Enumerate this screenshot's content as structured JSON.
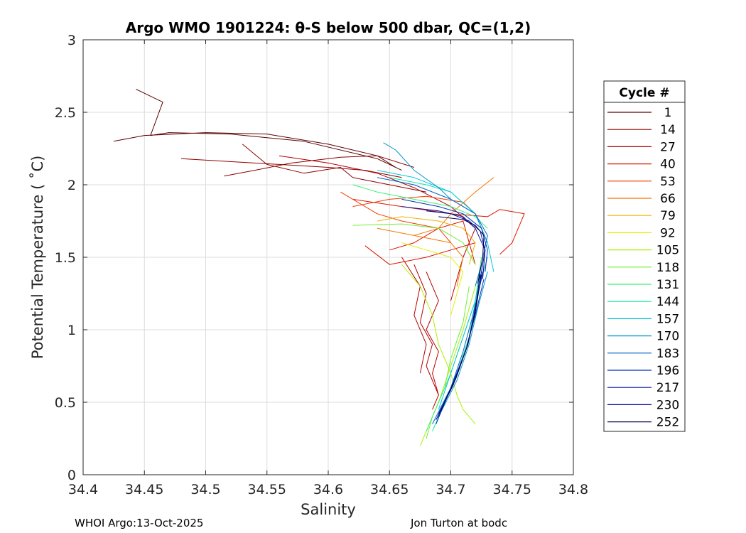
{
  "chart_data": {
    "type": "line",
    "title": "Argo WMO 1901224: θ-S below 500 dbar,  QC=(1,2)",
    "xlabel": "Salinity",
    "ylabel": "Potential Temperature ( ˚C)",
    "xlim": [
      34.4,
      34.8
    ],
    "ylim": [
      0,
      3
    ],
    "xticks": [
      34.4,
      34.45,
      34.5,
      34.55,
      34.6,
      34.65,
      34.7,
      34.75,
      34.8
    ],
    "xtick_labels": [
      "34.4",
      "34.45",
      "34.5",
      "34.55",
      "34.6",
      "34.65",
      "34.7",
      "34.75",
      "34.8"
    ],
    "yticks": [
      0,
      0.5,
      1,
      1.5,
      2,
      2.5,
      3
    ],
    "ytick_labels": [
      "0",
      "0.5",
      "1",
      "1.5",
      "2",
      "2.5",
      "3"
    ],
    "grid": true,
    "legend": {
      "title": "Cycle #",
      "placement": "outside-right",
      "entries": [
        {
          "label": "1",
          "color": "#5a0000"
        },
        {
          "label": "14",
          "color": "#8c0000"
        },
        {
          "label": "27",
          "color": "#b40000"
        },
        {
          "label": "40",
          "color": "#dc1400"
        },
        {
          "label": "53",
          "color": "#f03c00"
        },
        {
          "label": "66",
          "color": "#f57800"
        },
        {
          "label": "79",
          "color": "#f0b400"
        },
        {
          "label": "92",
          "color": "#e6ee00"
        },
        {
          "label": "105",
          "color": "#aaf000"
        },
        {
          "label": "118",
          "color": "#6ef032"
        },
        {
          "label": "131",
          "color": "#3cf078"
        },
        {
          "label": "144",
          "color": "#14e6aa"
        },
        {
          "label": "157",
          "color": "#00c8dc"
        },
        {
          "label": "170",
          "color": "#0096d2"
        },
        {
          "label": "183",
          "color": "#0064c8"
        },
        {
          "label": "196",
          "color": "#0032b4"
        },
        {
          "label": "217",
          "color": "#0014a0"
        },
        {
          "label": "230",
          "color": "#000a8c"
        },
        {
          "label": "252",
          "color": "#000050"
        }
      ]
    },
    "series": [
      {
        "cycle": 1,
        "color": "#5a0000",
        "x": [
          34.443,
          34.465,
          34.455,
          34.47,
          34.52,
          34.58,
          34.64,
          34.66
        ],
        "y": [
          2.66,
          2.57,
          2.34,
          2.36,
          2.35,
          2.3,
          2.18,
          2.1
        ]
      },
      {
        "cycle": 1,
        "color": "#5a0000",
        "x": [
          34.425,
          34.45,
          34.5,
          34.55,
          34.6,
          34.64,
          34.655
        ],
        "y": [
          2.3,
          2.34,
          2.36,
          2.35,
          2.28,
          2.2,
          2.12
        ]
      },
      {
        "cycle": 14,
        "color": "#8c0000",
        "x": [
          34.48,
          34.52,
          34.56,
          34.6,
          34.63,
          34.66
        ],
        "y": [
          2.18,
          2.16,
          2.14,
          2.12,
          2.1,
          2.05
        ]
      },
      {
        "cycle": 14,
        "color": "#8c0000",
        "x": [
          34.515,
          34.54,
          34.57,
          34.61,
          34.64,
          34.67
        ],
        "y": [
          2.06,
          2.1,
          2.15,
          2.19,
          2.2,
          2.12
        ]
      },
      {
        "cycle": 14,
        "color": "#8c0000",
        "x": [
          34.53,
          34.55,
          34.58,
          34.61,
          34.62,
          34.65,
          34.68
        ],
        "y": [
          2.28,
          2.14,
          2.08,
          2.12,
          2.05,
          2.0,
          1.95
        ]
      },
      {
        "cycle": 27,
        "color": "#b40000",
        "x": [
          34.56,
          34.6,
          34.64,
          34.67,
          34.7,
          34.72,
          34.71,
          34.7
        ],
        "y": [
          2.2,
          2.15,
          2.08,
          1.98,
          1.85,
          1.7,
          1.5,
          1.2
        ]
      },
      {
        "cycle": 27,
        "color": "#b40000",
        "x": [
          34.68,
          34.69,
          34.68,
          34.69,
          34.685,
          34.69,
          34.685
        ],
        "y": [
          1.4,
          1.2,
          1.0,
          0.85,
          0.7,
          0.55,
          0.45
        ]
      },
      {
        "cycle": 27,
        "color": "#b40000",
        "x": [
          34.67,
          34.68,
          34.675,
          34.685,
          34.68,
          34.69
        ],
        "y": [
          1.45,
          1.25,
          1.05,
          0.9,
          0.75,
          0.55
        ]
      },
      {
        "cycle": 27,
        "color": "#b40000",
        "x": [
          34.66,
          34.675,
          34.67,
          34.68,
          34.675
        ],
        "y": [
          1.5,
          1.3,
          1.1,
          0.9,
          0.7
        ]
      },
      {
        "cycle": 40,
        "color": "#dc1400",
        "x": [
          34.62,
          34.66,
          34.7,
          34.73,
          34.74,
          34.76,
          34.75,
          34.74
        ],
        "y": [
          1.9,
          1.85,
          1.8,
          1.78,
          1.83,
          1.8,
          1.6,
          1.52
        ]
      },
      {
        "cycle": 40,
        "color": "#dc1400",
        "x": [
          34.65,
          34.67,
          34.69,
          34.71,
          34.715,
          34.72
        ],
        "y": [
          1.55,
          1.6,
          1.7,
          1.75,
          1.6,
          1.45
        ]
      },
      {
        "cycle": 40,
        "color": "#dc1400",
        "x": [
          34.63,
          34.65,
          34.68,
          34.7,
          34.72
        ],
        "y": [
          1.58,
          1.45,
          1.5,
          1.55,
          1.6
        ]
      },
      {
        "cycle": 53,
        "color": "#f03c00",
        "x": [
          34.62,
          34.65,
          34.68,
          34.71,
          34.72
        ],
        "y": [
          1.85,
          1.9,
          1.92,
          1.88,
          1.8
        ]
      },
      {
        "cycle": 53,
        "color": "#f03c00",
        "x": [
          34.61,
          34.64,
          34.66,
          34.69,
          34.7
        ],
        "y": [
          1.95,
          1.8,
          1.75,
          1.7,
          1.6
        ]
      },
      {
        "cycle": 66,
        "color": "#f57800",
        "x": [
          34.67,
          34.69,
          34.7,
          34.72,
          34.735
        ],
        "y": [
          1.65,
          1.7,
          1.8,
          1.95,
          2.05
        ]
      },
      {
        "cycle": 66,
        "color": "#f57800",
        "x": [
          34.64,
          34.67,
          34.7,
          34.71,
          34.705
        ],
        "y": [
          1.7,
          1.65,
          1.6,
          1.5,
          1.3
        ]
      },
      {
        "cycle": 79,
        "color": "#f0b400",
        "x": [
          34.64,
          34.66,
          34.69,
          34.71,
          34.72,
          34.715
        ],
        "y": [
          1.75,
          1.78,
          1.75,
          1.7,
          1.6,
          1.45
        ]
      },
      {
        "cycle": 92,
        "color": "#e6ee00",
        "x": [
          34.66,
          34.68,
          34.7,
          34.71,
          34.705,
          34.7
        ],
        "y": [
          1.6,
          1.55,
          1.5,
          1.4,
          1.25,
          1.1
        ]
      },
      {
        "cycle": 105,
        "color": "#aaf000",
        "x": [
          34.66,
          34.675,
          34.685,
          34.69,
          34.7,
          34.705,
          34.71,
          34.72
        ],
        "y": [
          1.45,
          1.3,
          1.1,
          0.9,
          0.7,
          0.55,
          0.45,
          0.35
        ]
      },
      {
        "cycle": 105,
        "color": "#aaf000",
        "x": [
          34.675,
          34.68,
          34.69,
          34.7,
          34.71,
          34.72
        ],
        "y": [
          0.2,
          0.3,
          0.5,
          0.75,
          1.0,
          1.3
        ]
      },
      {
        "cycle": 118,
        "color": "#6ef032",
        "x": [
          34.68,
          34.685,
          34.695,
          34.7,
          34.71,
          34.715
        ],
        "y": [
          0.25,
          0.4,
          0.6,
          0.8,
          1.05,
          1.3
        ]
      },
      {
        "cycle": 118,
        "color": "#6ef032",
        "x": [
          34.62,
          34.66,
          34.69,
          34.71,
          34.72
        ],
        "y": [
          1.72,
          1.73,
          1.7,
          1.6,
          1.45
        ]
      },
      {
        "cycle": 131,
        "color": "#3cf078",
        "x": [
          34.68,
          34.69,
          34.7,
          34.71,
          34.72,
          34.725
        ],
        "y": [
          0.3,
          0.5,
          0.7,
          0.95,
          1.2,
          1.5
        ]
      },
      {
        "cycle": 131,
        "color": "#3cf078",
        "x": [
          34.62,
          34.64,
          34.67,
          34.7,
          34.72,
          34.73
        ],
        "y": [
          2.0,
          1.95,
          1.9,
          1.85,
          1.78,
          1.7
        ]
      },
      {
        "cycle": 144,
        "color": "#14e6aa",
        "x": [
          34.685,
          34.695,
          34.705,
          34.715,
          34.72,
          34.73
        ],
        "y": [
          0.3,
          0.5,
          0.7,
          0.95,
          1.2,
          1.5
        ]
      },
      {
        "cycle": 144,
        "color": "#14e6aa",
        "x": [
          34.65,
          34.68,
          34.7,
          34.72,
          34.73
        ],
        "y": [
          2.05,
          2.0,
          1.95,
          1.8,
          1.6
        ]
      },
      {
        "cycle": 157,
        "color": "#00c8dc",
        "x": [
          34.64,
          34.67,
          34.7,
          34.72,
          34.73,
          34.735
        ],
        "y": [
          2.1,
          2.05,
          1.95,
          1.8,
          1.6,
          1.4
        ]
      },
      {
        "cycle": 157,
        "color": "#00c8dc",
        "x": [
          34.69,
          34.7,
          34.71,
          34.72,
          34.725
        ],
        "y": [
          0.45,
          0.7,
          0.95,
          1.2,
          1.45
        ]
      },
      {
        "cycle": 170,
        "color": "#0096d2",
        "x": [
          34.645,
          34.655,
          34.67,
          34.69,
          34.7,
          34.72,
          34.73
        ],
        "y": [
          2.29,
          2.24,
          2.1,
          1.98,
          1.9,
          1.8,
          1.6
        ]
      },
      {
        "cycle": 170,
        "color": "#0096d2",
        "x": [
          34.69,
          34.705,
          34.715,
          34.722,
          34.73
        ],
        "y": [
          0.4,
          0.65,
          0.9,
          1.15,
          1.4
        ]
      },
      {
        "cycle": 183,
        "color": "#0064c8",
        "x": [
          34.64,
          34.67,
          34.7,
          34.72,
          34.73,
          34.725,
          34.72
        ],
        "y": [
          2.05,
          2.0,
          1.9,
          1.8,
          1.65,
          1.45,
          1.3
        ]
      },
      {
        "cycle": 183,
        "color": "#0064c8",
        "x": [
          34.685,
          34.7,
          34.71,
          34.718,
          34.725
        ],
        "y": [
          0.35,
          0.6,
          0.85,
          1.1,
          1.35
        ]
      },
      {
        "cycle": 196,
        "color": "#0032b4",
        "x": [
          34.66,
          34.69,
          34.71,
          34.725,
          34.73,
          34.728
        ],
        "y": [
          1.9,
          1.85,
          1.8,
          1.7,
          1.55,
          1.4
        ]
      },
      {
        "cycle": 196,
        "color": "#0032b4",
        "x": [
          34.688,
          34.7,
          34.712,
          34.72,
          34.727
        ],
        "y": [
          0.35,
          0.6,
          0.85,
          1.1,
          1.35
        ]
      },
      {
        "cycle": 217,
        "color": "#0014a0",
        "x": [
          34.66,
          34.69,
          34.71,
          34.72,
          34.728,
          34.726
        ],
        "y": [
          1.85,
          1.82,
          1.78,
          1.7,
          1.55,
          1.35
        ]
      },
      {
        "cycle": 217,
        "color": "#0014a0",
        "x": [
          34.69,
          34.703,
          34.714,
          34.72,
          34.726
        ],
        "y": [
          0.4,
          0.65,
          0.9,
          1.15,
          1.4
        ]
      },
      {
        "cycle": 230,
        "color": "#000a8c",
        "x": [
          34.68,
          34.7,
          34.715,
          34.724,
          34.728,
          34.724
        ],
        "y": [
          1.82,
          1.8,
          1.75,
          1.68,
          1.55,
          1.35
        ]
      },
      {
        "cycle": 230,
        "color": "#000a8c",
        "x": [
          34.688,
          34.702,
          34.713,
          34.72,
          34.725
        ],
        "y": [
          0.38,
          0.62,
          0.88,
          1.12,
          1.38
        ]
      },
      {
        "cycle": 252,
        "color": "#000050",
        "x": [
          34.69,
          34.71,
          34.72,
          34.727,
          34.726,
          34.722
        ],
        "y": [
          1.78,
          1.76,
          1.72,
          1.65,
          1.5,
          1.32
        ]
      },
      {
        "cycle": 252,
        "color": "#000050",
        "x": [
          34.69,
          34.704,
          34.714,
          34.72,
          34.724
        ],
        "y": [
          0.42,
          0.66,
          0.9,
          1.14,
          1.38
        ]
      }
    ]
  },
  "footer": {
    "left": "WHOI Argo:13-Oct-2025",
    "right": "Jon Turton at bodc"
  }
}
